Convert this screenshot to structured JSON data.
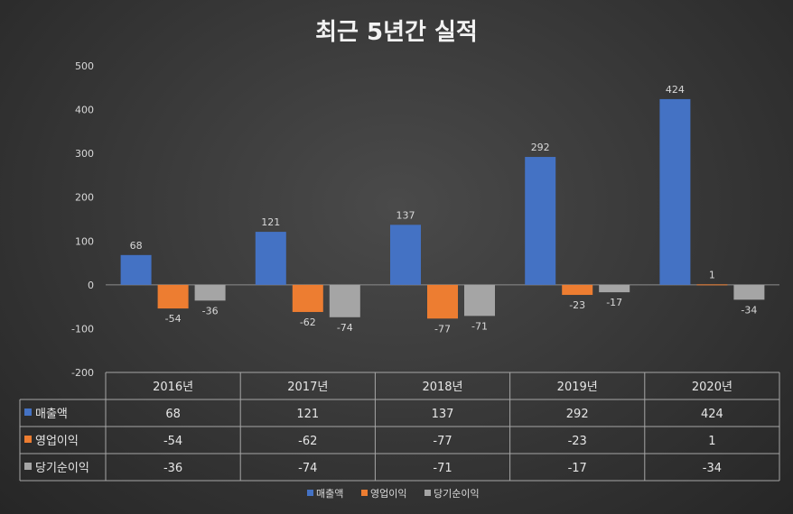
{
  "chart_data": {
    "type": "bar",
    "title": "최근 5년간 실적",
    "categories": [
      "2016년",
      "2017년",
      "2018년",
      "2019년",
      "2020년"
    ],
    "series": [
      {
        "name": "매출액",
        "values": [
          68,
          121,
          137,
          292,
          424
        ],
        "color": "#4472c4"
      },
      {
        "name": "영업이익",
        "values": [
          -54,
          -62,
          -77,
          -23,
          1
        ],
        "color": "#ed7d31"
      },
      {
        "name": "당기순이익",
        "values": [
          -36,
          -74,
          -71,
          -17,
          -34
        ],
        "color": "#a5a5a5"
      }
    ],
    "ylim": [
      -200,
      500
    ],
    "yticks": [
      500,
      400,
      300,
      200,
      100,
      0,
      -100,
      -200
    ],
    "grid": false,
    "data_table": true,
    "legend_position": "bottom"
  }
}
